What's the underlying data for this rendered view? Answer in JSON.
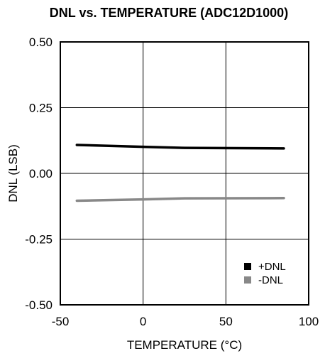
{
  "chart_data": {
    "type": "line",
    "title": "DNL vs. TEMPERATURE (ADC12D1000)",
    "xlabel": "TEMPERATURE (°C)",
    "ylabel": "DNL (LSB)",
    "xlim": [
      -50,
      100
    ],
    "ylim": [
      -0.5,
      0.5
    ],
    "x_ticks": [
      -50,
      0,
      50,
      100
    ],
    "x_tick_labels": [
      "-50",
      "0",
      "50",
      "100"
    ],
    "y_ticks": [
      -0.5,
      -0.25,
      0.0,
      0.25,
      0.5
    ],
    "y_tick_labels": [
      "-0.50",
      "-0.25",
      "0.00",
      "0.25",
      "0.50"
    ],
    "grid": true,
    "legend_position": "bottom-right",
    "series": [
      {
        "name": "+DNL",
        "color": "#000000",
        "x": [
          -40,
          0,
          25,
          85
        ],
        "y": [
          0.108,
          0.101,
          0.097,
          0.095
        ]
      },
      {
        "name": "-DNL",
        "color": "#888888",
        "x": [
          -40,
          0,
          25,
          85
        ],
        "y": [
          -0.104,
          -0.099,
          -0.095,
          -0.094
        ]
      }
    ]
  }
}
